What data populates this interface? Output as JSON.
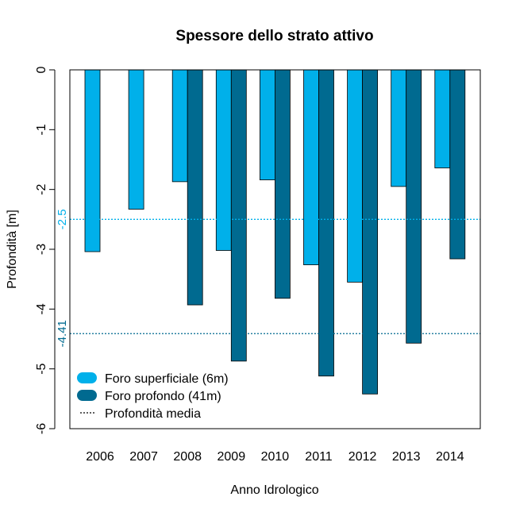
{
  "chart_data": {
    "type": "bar",
    "title": "Spessore dello strato attivo",
    "xlabel": "Anno Idrologico",
    "ylabel": "Profondità [m]",
    "ylim": [
      -6,
      0
    ],
    "yticks": [
      0,
      -1,
      -2,
      -3,
      -4,
      -5,
      -6
    ],
    "ytick_labels": [
      "0",
      "-1",
      "-2",
      "-3",
      "-4",
      "-5",
      "-6"
    ],
    "categories": [
      "2006",
      "2007",
      "2008",
      "2009",
      "2010",
      "2011",
      "2012",
      "2013",
      "2014"
    ],
    "series": [
      {
        "name": "Foro superficiale (6m)",
        "color": "#00b0ea",
        "values": [
          -3.04,
          -2.33,
          -1.87,
          -3.02,
          -1.84,
          -3.26,
          -3.55,
          -1.95,
          -1.64
        ],
        "mean": -2.5,
        "mean_label": "-2.5"
      },
      {
        "name": "Foro profondo (41m)",
        "color": "#006a90",
        "values": [
          null,
          null,
          -3.93,
          -4.87,
          -3.82,
          -5.12,
          -5.42,
          -4.57,
          -3.16
        ],
        "mean": -4.41,
        "mean_label": "-4.41"
      }
    ],
    "mean_legend_label": "Profondità media",
    "legend_position": "bottom-left",
    "grid": false
  }
}
